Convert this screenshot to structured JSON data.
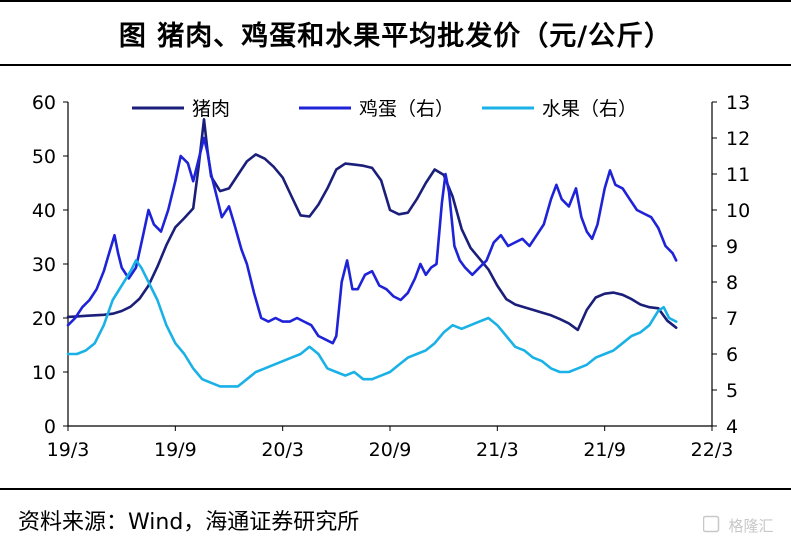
{
  "title": "图  猪肉、鸡蛋和水果平均批发价（元/公斤）",
  "source": "资料来源：Wind，海通证券研究所",
  "watermark": "格隆汇",
  "chart_data": {
    "type": "line",
    "x_tick_labels": [
      "19/3",
      "19/9",
      "20/3",
      "20/9",
      "21/3",
      "21/9",
      "22/3"
    ],
    "x_range": [
      0,
      36
    ],
    "y_left": {
      "ylim": [
        0,
        60
      ],
      "ticks": [
        0,
        10,
        20,
        30,
        40,
        50,
        60
      ]
    },
    "y_right": {
      "ylim": [
        4,
        13
      ],
      "ticks": [
        4,
        5,
        6,
        7,
        8,
        9,
        10,
        11,
        12,
        13
      ]
    },
    "legend": "top",
    "series": [
      {
        "name": "猪肉",
        "axis": "left",
        "color": "#1B1F7A",
        "points": [
          [
            0,
            20.2
          ],
          [
            0.5,
            20.3
          ],
          [
            1,
            20.4
          ],
          [
            1.5,
            20.5
          ],
          [
            2,
            20.6
          ],
          [
            2.5,
            20.8
          ],
          [
            3,
            21.3
          ],
          [
            3.5,
            22.1
          ],
          [
            4,
            23.6
          ],
          [
            4.5,
            26.0
          ],
          [
            5,
            29.5
          ],
          [
            5.5,
            33.5
          ],
          [
            6,
            36.8
          ],
          [
            6.5,
            38.5
          ],
          [
            7,
            40.3
          ],
          [
            7.3,
            48.0
          ],
          [
            7.6,
            56.8
          ],
          [
            7.8,
            51.0
          ],
          [
            8,
            46.2
          ],
          [
            8.5,
            43.5
          ],
          [
            9,
            44.0
          ],
          [
            9.5,
            46.5
          ],
          [
            10,
            49.0
          ],
          [
            10.5,
            50.3
          ],
          [
            11,
            49.5
          ],
          [
            11.5,
            48.0
          ],
          [
            12,
            46.0
          ],
          [
            12.5,
            42.5
          ],
          [
            13,
            39.0
          ],
          [
            13.5,
            38.8
          ],
          [
            14,
            41.0
          ],
          [
            14.5,
            44.0
          ],
          [
            15,
            47.5
          ],
          [
            15.5,
            48.6
          ],
          [
            16,
            48.4
          ],
          [
            16.5,
            48.2
          ],
          [
            17,
            47.8
          ],
          [
            17.5,
            45.5
          ],
          [
            18,
            40.0
          ],
          [
            18.5,
            39.2
          ],
          [
            19,
            39.5
          ],
          [
            19.5,
            42.0
          ],
          [
            20,
            45.0
          ],
          [
            20.5,
            47.5
          ],
          [
            21,
            46.5
          ],
          [
            21.5,
            42.5
          ],
          [
            22,
            36.5
          ],
          [
            22.5,
            33.0
          ],
          [
            23,
            31.0
          ],
          [
            23.5,
            29.0
          ],
          [
            24,
            26.0
          ],
          [
            24.5,
            23.5
          ],
          [
            25,
            22.5
          ],
          [
            25.5,
            22.0
          ],
          [
            26,
            21.5
          ],
          [
            26.5,
            21.0
          ],
          [
            27,
            20.5
          ],
          [
            27.5,
            19.8
          ],
          [
            28,
            19.0
          ],
          [
            28.5,
            17.8
          ],
          [
            29,
            21.5
          ],
          [
            29.5,
            23.8
          ],
          [
            30,
            24.5
          ],
          [
            30.5,
            24.7
          ],
          [
            31,
            24.3
          ],
          [
            31.5,
            23.5
          ],
          [
            32,
            22.5
          ],
          [
            32.5,
            22.0
          ],
          [
            33,
            21.8
          ],
          [
            33.5,
            19.5
          ],
          [
            34,
            18.2
          ]
        ]
      },
      {
        "name": "鸡蛋（右）",
        "axis": "right",
        "color": "#1F23D8",
        "points": [
          [
            0,
            6.8
          ],
          [
            0.4,
            7.0
          ],
          [
            0.8,
            7.3
          ],
          [
            1.2,
            7.5
          ],
          [
            1.6,
            7.8
          ],
          [
            2,
            8.3
          ],
          [
            2.3,
            8.8
          ],
          [
            2.6,
            9.3
          ],
          [
            2.8,
            8.8
          ],
          [
            3,
            8.4
          ],
          [
            3.4,
            8.1
          ],
          [
            3.8,
            8.4
          ],
          [
            4.2,
            9.3
          ],
          [
            4.5,
            10.0
          ],
          [
            4.8,
            9.6
          ],
          [
            5.2,
            9.4
          ],
          [
            5.6,
            10.0
          ],
          [
            6,
            10.8
          ],
          [
            6.3,
            11.5
          ],
          [
            6.7,
            11.3
          ],
          [
            7,
            10.8
          ],
          [
            7.3,
            11.4
          ],
          [
            7.6,
            12.0
          ],
          [
            7.8,
            11.6
          ],
          [
            8,
            11.0
          ],
          [
            8.3,
            10.4
          ],
          [
            8.6,
            9.8
          ],
          [
            9,
            10.1
          ],
          [
            9.3,
            9.6
          ],
          [
            9.7,
            8.9
          ],
          [
            10,
            8.5
          ],
          [
            10.4,
            7.7
          ],
          [
            10.8,
            7.0
          ],
          [
            11.2,
            6.9
          ],
          [
            11.6,
            7.0
          ],
          [
            12,
            6.9
          ],
          [
            12.4,
            6.9
          ],
          [
            12.8,
            7.0
          ],
          [
            13.2,
            6.9
          ],
          [
            13.6,
            6.8
          ],
          [
            14,
            6.5
          ],
          [
            14.4,
            6.4
          ],
          [
            14.8,
            6.3
          ],
          [
            15,
            6.5
          ],
          [
            15.3,
            8.0
          ],
          [
            15.6,
            8.6
          ],
          [
            15.9,
            7.8
          ],
          [
            16.2,
            7.8
          ],
          [
            16.6,
            8.2
          ],
          [
            17,
            8.3
          ],
          [
            17.4,
            7.9
          ],
          [
            17.8,
            7.8
          ],
          [
            18.2,
            7.6
          ],
          [
            18.6,
            7.5
          ],
          [
            19,
            7.7
          ],
          [
            19.4,
            8.1
          ],
          [
            19.7,
            8.5
          ],
          [
            20,
            8.2
          ],
          [
            20.3,
            8.4
          ],
          [
            20.6,
            8.5
          ],
          [
            20.9,
            10.2
          ],
          [
            21.1,
            11.0
          ],
          [
            21.3,
            10.5
          ],
          [
            21.6,
            9.0
          ],
          [
            21.9,
            8.6
          ],
          [
            22.2,
            8.4
          ],
          [
            22.6,
            8.2
          ],
          [
            23,
            8.4
          ],
          [
            23.4,
            8.6
          ],
          [
            23.8,
            9.1
          ],
          [
            24.2,
            9.3
          ],
          [
            24.6,
            9.0
          ],
          [
            25,
            9.1
          ],
          [
            25.4,
            9.2
          ],
          [
            25.8,
            9.0
          ],
          [
            26.2,
            9.3
          ],
          [
            26.6,
            9.6
          ],
          [
            27,
            10.3
          ],
          [
            27.3,
            10.7
          ],
          [
            27.6,
            10.3
          ],
          [
            28,
            10.1
          ],
          [
            28.4,
            10.6
          ],
          [
            28.7,
            9.8
          ],
          [
            29,
            9.4
          ],
          [
            29.3,
            9.2
          ],
          [
            29.6,
            9.6
          ],
          [
            30,
            10.6
          ],
          [
            30.3,
            11.1
          ],
          [
            30.6,
            10.7
          ],
          [
            31,
            10.6
          ],
          [
            31.4,
            10.3
          ],
          [
            31.8,
            10.0
          ],
          [
            32.2,
            9.9
          ],
          [
            32.6,
            9.8
          ],
          [
            33,
            9.5
          ],
          [
            33.4,
            9.0
          ],
          [
            33.8,
            8.8
          ],
          [
            34,
            8.6
          ]
        ]
      },
      {
        "name": "水果（右）",
        "axis": "right",
        "color": "#19B1E6",
        "points": [
          [
            0,
            6.0
          ],
          [
            0.5,
            6.0
          ],
          [
            1,
            6.1
          ],
          [
            1.5,
            6.3
          ],
          [
            2,
            6.8
          ],
          [
            2.5,
            7.5
          ],
          [
            3,
            7.9
          ],
          [
            3.5,
            8.3
          ],
          [
            3.8,
            8.6
          ],
          [
            4.1,
            8.4
          ],
          [
            4.5,
            8.0
          ],
          [
            5,
            7.5
          ],
          [
            5.5,
            6.8
          ],
          [
            6,
            6.3
          ],
          [
            6.5,
            6.0
          ],
          [
            7,
            5.6
          ],
          [
            7.5,
            5.3
          ],
          [
            8,
            5.2
          ],
          [
            8.5,
            5.1
          ],
          [
            9,
            5.1
          ],
          [
            9.5,
            5.1
          ],
          [
            10,
            5.3
          ],
          [
            10.5,
            5.5
          ],
          [
            11,
            5.6
          ],
          [
            11.5,
            5.7
          ],
          [
            12,
            5.8
          ],
          [
            12.5,
            5.9
          ],
          [
            13,
            6.0
          ],
          [
            13.5,
            6.2
          ],
          [
            14,
            6.0
          ],
          [
            14.5,
            5.6
          ],
          [
            15,
            5.5
          ],
          [
            15.5,
            5.4
          ],
          [
            16,
            5.5
          ],
          [
            16.5,
            5.3
          ],
          [
            17,
            5.3
          ],
          [
            17.5,
            5.4
          ],
          [
            18,
            5.5
          ],
          [
            18.5,
            5.7
          ],
          [
            19,
            5.9
          ],
          [
            19.5,
            6.0
          ],
          [
            20,
            6.1
          ],
          [
            20.5,
            6.3
          ],
          [
            21,
            6.6
          ],
          [
            21.5,
            6.8
          ],
          [
            22,
            6.7
          ],
          [
            22.5,
            6.8
          ],
          [
            23,
            6.9
          ],
          [
            23.5,
            7.0
          ],
          [
            24,
            6.8
          ],
          [
            24.5,
            6.5
          ],
          [
            25,
            6.2
          ],
          [
            25.5,
            6.1
          ],
          [
            26,
            5.9
          ],
          [
            26.5,
            5.8
          ],
          [
            27,
            5.6
          ],
          [
            27.5,
            5.5
          ],
          [
            28,
            5.5
          ],
          [
            28.5,
            5.6
          ],
          [
            29,
            5.7
          ],
          [
            29.5,
            5.9
          ],
          [
            30,
            6.0
          ],
          [
            30.5,
            6.1
          ],
          [
            31,
            6.3
          ],
          [
            31.5,
            6.5
          ],
          [
            32,
            6.6
          ],
          [
            32.5,
            6.8
          ],
          [
            33,
            7.2
          ],
          [
            33.3,
            7.3
          ],
          [
            33.6,
            7.0
          ],
          [
            34,
            6.9
          ]
        ]
      }
    ]
  }
}
